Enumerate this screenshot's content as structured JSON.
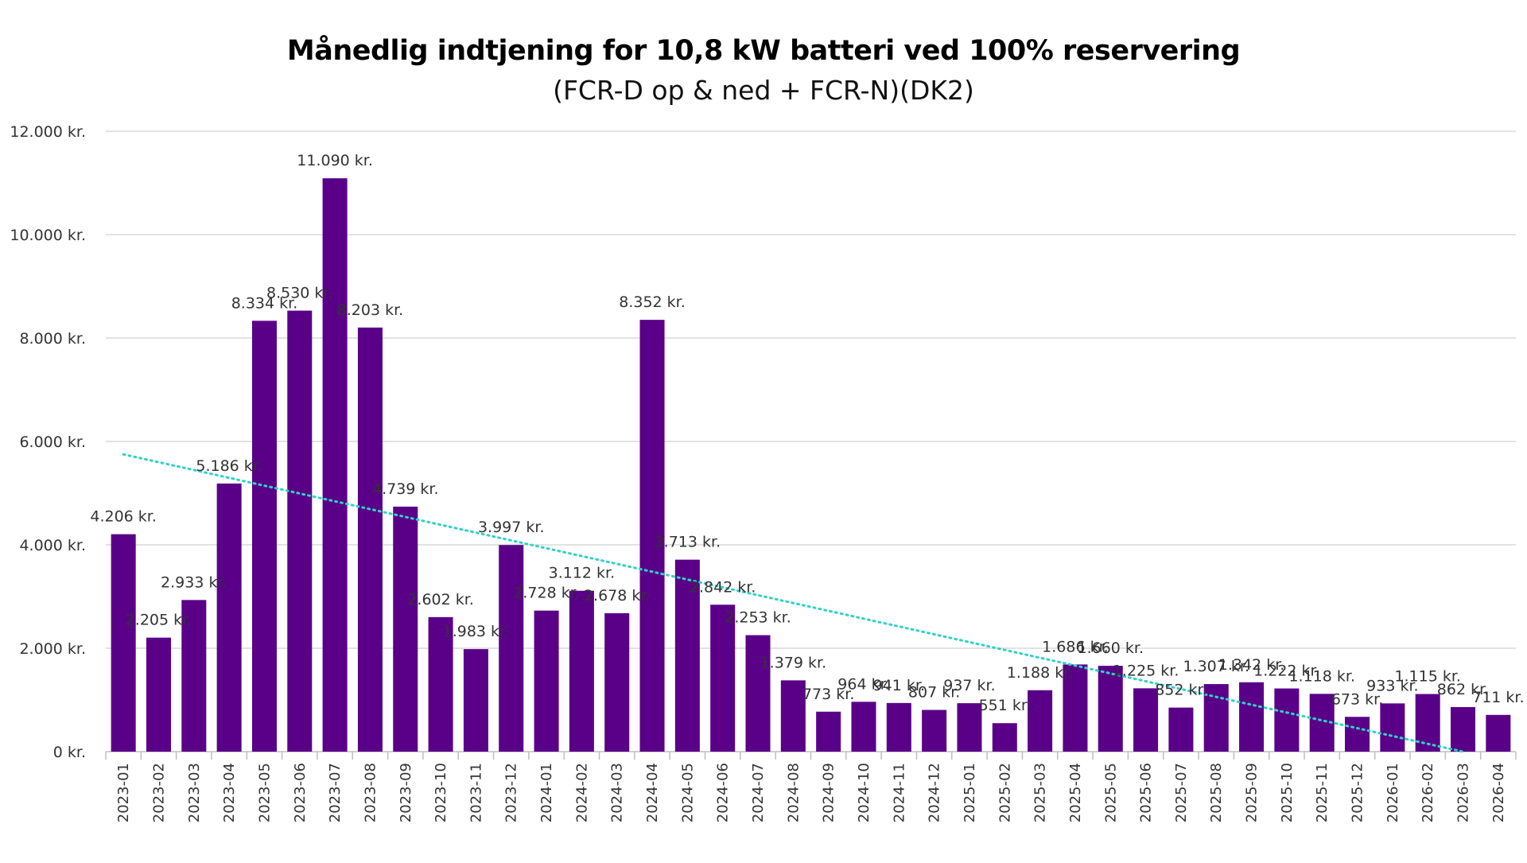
{
  "chart_data": {
    "type": "bar",
    "title": "Månedlig indtjening for 10,8 kW batteri ved 100% reservering",
    "subtitle": "(FCR-D op & ned + FCR-N)(DK2)",
    "categories": [
      "2023-01",
      "2023-02",
      "2023-03",
      "2023-04",
      "2023-05",
      "2023-06",
      "2023-07",
      "2023-08",
      "2023-09",
      "2023-10",
      "2023-11",
      "2023-12",
      "2024-01",
      "2024-02",
      "2024-03",
      "2024-04",
      "2024-05",
      "2024-06",
      "2024-07",
      "2024-08",
      "2024-09",
      "2024-10",
      "2024-11",
      "2024-12",
      "2025-01",
      "2025-02",
      "2025-03",
      "2025-04",
      "2025-05",
      "2025-06",
      "2025-07",
      "2025-08",
      "2025-09",
      "2025-10",
      "2025-11",
      "2025-12",
      "2026-01",
      "2026-02",
      "2026-03",
      "2026-04"
    ],
    "values": [
      4206,
      2205,
      2933,
      5186,
      8334,
      8530,
      11090,
      8203,
      4739,
      2602,
      1983,
      3997,
      2728,
      3112,
      2678,
      8352,
      3713,
      2842,
      2253,
      1379,
      773,
      964,
      941,
      807,
      937,
      551,
      1188,
      1686,
      1660,
      1225,
      852,
      1307,
      1342,
      1222,
      1118,
      673,
      933,
      1115,
      862,
      711
    ],
    "data_labels": [
      "4.206 kr.",
      "2.205 kr.",
      "2.933 kr.",
      "5.186 kr.",
      "8.334 kr.",
      "8.530 kr.",
      "11.090 kr.",
      "8.203 kr.",
      "4.739 kr.",
      "2.602 kr.",
      "1.983 kr.",
      "3.997 kr.",
      "2.728 kr.",
      "3.112 kr.",
      "2.678 kr.",
      "8.352 kr.",
      "3.713 kr.",
      "2.842 kr.",
      "2.253 kr.",
      "1.379 kr.",
      "773 kr.",
      "964 kr.",
      "941 kr.",
      "807 kr.",
      "937 kr.",
      "551 kr.",
      "1.188 kr.",
      "1.686 kr.",
      "1.660 kr.",
      "1.225 kr.",
      "852 kr.",
      "1.307 kr.",
      "1.342 kr.",
      "1.222 kr.",
      "1.118 kr.",
      "673 kr.",
      "933 kr.",
      "1.115 kr.",
      "862 kr.",
      "711 kr."
    ],
    "ylim": [
      0,
      12000
    ],
    "yticks": [
      0,
      2000,
      4000,
      6000,
      8000,
      10000,
      12000
    ],
    "ytick_labels": [
      "0 kr.",
      "2.000 kr.",
      "4.000 kr.",
      "6.000 kr.",
      "8.000 kr.",
      "10.000 kr.",
      "12.000 kr."
    ],
    "grid": true,
    "trendline": {
      "type": "linear",
      "style": "dotted",
      "start_value": 5750,
      "end_value": 0
    },
    "colors": {
      "bar": "#5a0088",
      "trendline": "#2ed3c6",
      "grid": "#d9d9d9",
      "axis": "#bfbfbf",
      "text": "#333333"
    }
  }
}
